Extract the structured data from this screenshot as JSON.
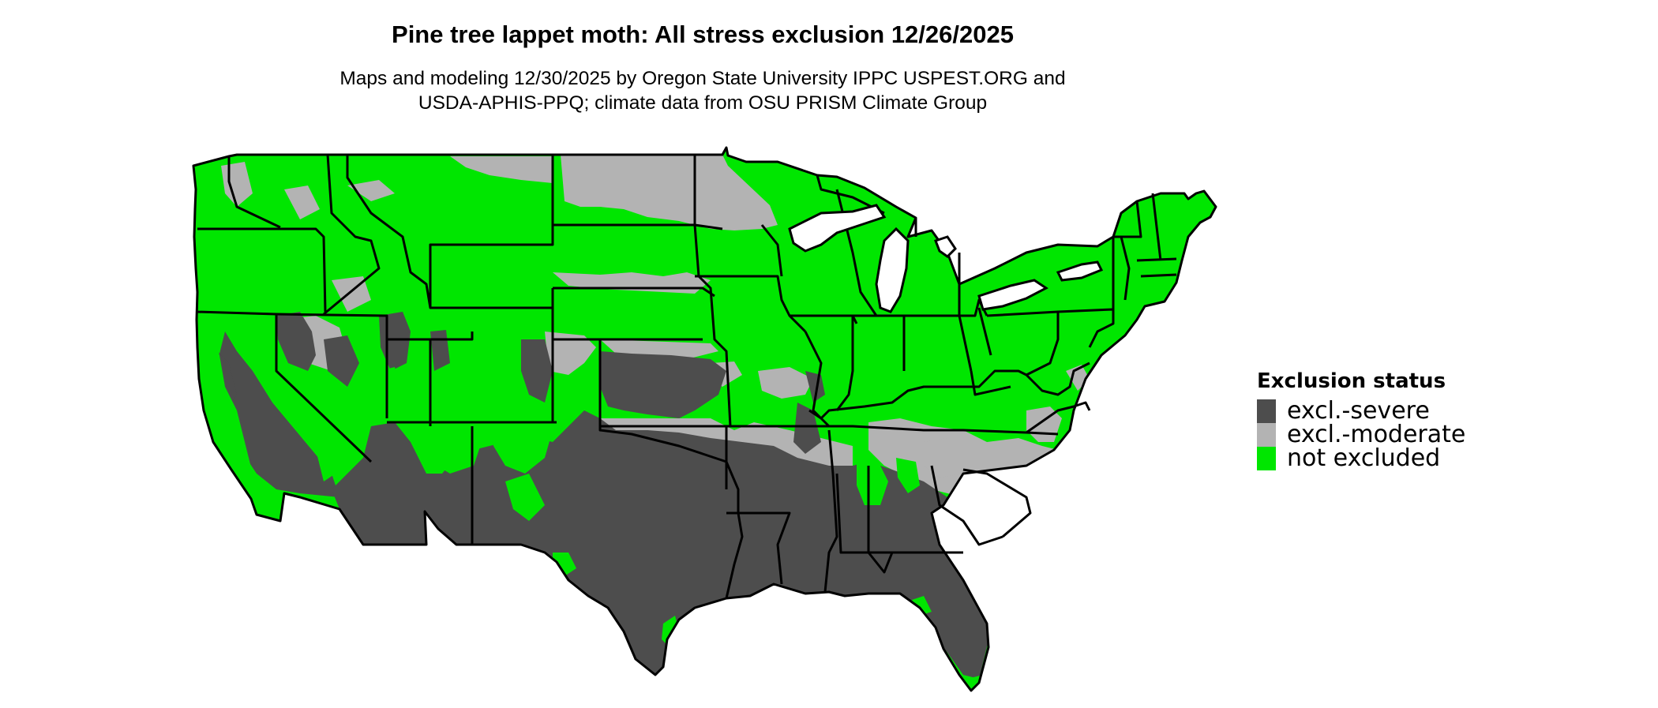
{
  "title": "Pine tree lappet moth: All stress exclusion 12/26/2025",
  "subtitle_line1": "Maps and modeling 12/30/2025 by Oregon State University IPPC USPEST.ORG and",
  "subtitle_line2": "USDA-APHIS-PPQ; climate data from OSU PRISM Climate Group",
  "legend": {
    "title": "Exclusion status",
    "items": [
      {
        "label": "excl.-severe",
        "color": "#4d4d4d"
      },
      {
        "label": "excl.-moderate",
        "color": "#b3b3b3"
      },
      {
        "label": "not excluded",
        "color": "#00e600"
      }
    ]
  },
  "colors": {
    "severe": "#4d4d4d",
    "moderate": "#b3b3b3",
    "not_excluded": "#00e600",
    "border": "#000000"
  }
}
